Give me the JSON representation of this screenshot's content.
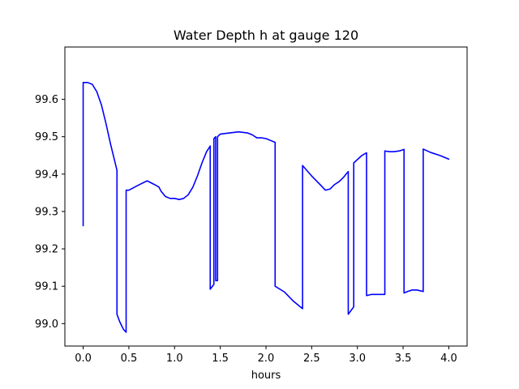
{
  "chart_data": {
    "type": "line",
    "title": "Water Depth h at gauge 120",
    "xlabel": "hours",
    "ylabel": "",
    "xlim": [
      -0.2,
      4.2
    ],
    "ylim": [
      98.94,
      99.74
    ],
    "xticks": [
      "0.0",
      "0.5",
      "1.0",
      "1.5",
      "2.0",
      "2.5",
      "3.0",
      "3.5",
      "4.0"
    ],
    "xtick_values": [
      0,
      0.5,
      1,
      1.5,
      2,
      2.5,
      3,
      3.5,
      4
    ],
    "yticks": [
      "99.0",
      "99.1",
      "99.2",
      "99.3",
      "99.4",
      "99.5",
      "99.6"
    ],
    "ytick_values": [
      99.0,
      99.1,
      99.2,
      99.3,
      99.4,
      99.5,
      99.6
    ],
    "grid": false,
    "legend": "none",
    "series": [
      {
        "color": "#0000ff",
        "points": [
          [
            0.0,
            99.262
          ],
          [
            0.0,
            99.645
          ],
          [
            0.05,
            99.645
          ],
          [
            0.1,
            99.64
          ],
          [
            0.15,
            99.62
          ],
          [
            0.2,
            99.585
          ],
          [
            0.25,
            99.535
          ],
          [
            0.3,
            99.48
          ],
          [
            0.34,
            99.44
          ],
          [
            0.37,
            99.41
          ],
          [
            0.37,
            99.025
          ],
          [
            0.4,
            99.005
          ],
          [
            0.44,
            98.985
          ],
          [
            0.47,
            98.977
          ],
          [
            0.47,
            99.357
          ],
          [
            0.5,
            99.357
          ],
          [
            0.6,
            99.37
          ],
          [
            0.7,
            99.382
          ],
          [
            0.78,
            99.372
          ],
          [
            0.83,
            99.365
          ],
          [
            0.85,
            99.355
          ],
          [
            0.9,
            99.34
          ],
          [
            0.95,
            99.335
          ],
          [
            1.0,
            99.335
          ],
          [
            1.05,
            99.332
          ],
          [
            1.1,
            99.335
          ],
          [
            1.15,
            99.345
          ],
          [
            1.2,
            99.365
          ],
          [
            1.25,
            99.395
          ],
          [
            1.3,
            99.43
          ],
          [
            1.35,
            99.46
          ],
          [
            1.39,
            99.475
          ],
          [
            1.39,
            99.092
          ],
          [
            1.43,
            99.105
          ],
          [
            1.43,
            99.495
          ],
          [
            1.45,
            99.5
          ],
          [
            1.45,
            99.115
          ],
          [
            1.47,
            99.115
          ],
          [
            1.47,
            99.5
          ],
          [
            1.5,
            99.507
          ],
          [
            1.6,
            99.51
          ],
          [
            1.7,
            99.513
          ],
          [
            1.8,
            99.51
          ],
          [
            1.85,
            99.505
          ],
          [
            1.9,
            99.497
          ],
          [
            1.95,
            99.497
          ],
          [
            2.0,
            99.495
          ],
          [
            2.05,
            99.49
          ],
          [
            2.1,
            99.485
          ],
          [
            2.1,
            99.1
          ],
          [
            2.2,
            99.085
          ],
          [
            2.3,
            99.06
          ],
          [
            2.4,
            99.04
          ],
          [
            2.4,
            99.423
          ],
          [
            2.5,
            99.395
          ],
          [
            2.6,
            99.37
          ],
          [
            2.65,
            99.357
          ],
          [
            2.7,
            99.36
          ],
          [
            2.75,
            99.372
          ],
          [
            2.8,
            99.38
          ],
          [
            2.85,
            99.392
          ],
          [
            2.9,
            99.407
          ],
          [
            2.9,
            99.025
          ],
          [
            2.96,
            99.045
          ],
          [
            2.96,
            99.43
          ],
          [
            3.05,
            99.45
          ],
          [
            3.1,
            99.457
          ],
          [
            3.1,
            99.075
          ],
          [
            3.15,
            99.078
          ],
          [
            3.3,
            99.078
          ],
          [
            3.3,
            99.462
          ],
          [
            3.35,
            99.46
          ],
          [
            3.4,
            99.46
          ],
          [
            3.46,
            99.462
          ],
          [
            3.51,
            99.466
          ],
          [
            3.51,
            99.082
          ],
          [
            3.55,
            99.086
          ],
          [
            3.6,
            99.09
          ],
          [
            3.65,
            99.09
          ],
          [
            3.72,
            99.086
          ],
          [
            3.72,
            99.467
          ],
          [
            3.8,
            99.458
          ],
          [
            3.9,
            99.45
          ],
          [
            4.0,
            99.44
          ]
        ]
      }
    ]
  }
}
